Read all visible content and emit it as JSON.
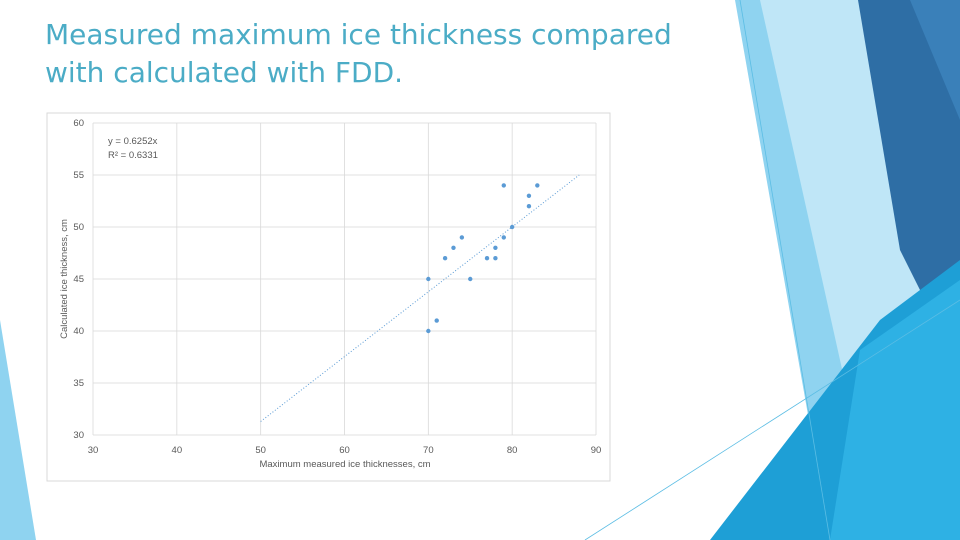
{
  "slide": {
    "title_lines": [
      "Measured maximum ice thickness compared",
      "with calculated with FDD."
    ]
  },
  "chart_data": {
    "type": "scatter",
    "x_label": "Maximum measured ice thicknesses, cm",
    "y_label": "Calculated ice thickness, cm",
    "annotations": [
      "y = 0.6252x",
      "R² = 0.6331"
    ],
    "x": [
      70,
      70,
      71,
      72,
      73,
      74,
      75,
      77,
      78,
      78,
      79,
      79,
      80,
      82,
      82,
      83
    ],
    "values": [
      40,
      45,
      41,
      47,
      48,
      49,
      45,
      47,
      47,
      48,
      49,
      54,
      50,
      52,
      53,
      54
    ],
    "color": "#5b9bd5",
    "trendline": {
      "x": [
        50,
        88
      ],
      "values": [
        31.3,
        55
      ],
      "color": "#5b9bd5"
    },
    "xlim": [
      30,
      90
    ],
    "xticks": [
      30,
      40,
      50,
      60,
      70,
      80,
      90
    ],
    "ylim": [
      30,
      60
    ],
    "yticks": [
      30,
      35,
      40,
      45,
      50,
      55,
      60
    ],
    "grid": true
  }
}
